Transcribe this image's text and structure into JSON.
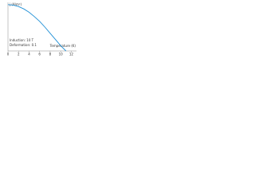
{
  "chart_data": {
    "type": "line",
    "y_label": "j (A/m²)",
    "x_label": "Temperature (K)",
    "annotations": [
      "Induction: 10 T",
      "Deformation: 0.1"
    ],
    "x": [
      0,
      1,
      2,
      3,
      4,
      5,
      6,
      7,
      8,
      9,
      10,
      11
    ],
    "series": [
      {
        "color": "#1f8fd6",
        "values": [
          0.97,
          0.96,
          0.93,
          0.88,
          0.81,
          0.72,
          0.62,
          0.5,
          0.37,
          0.24,
          0.11,
          0.0
        ]
      }
    ],
    "xlim": [
      0,
      13
    ],
    "ylim": [
      0,
      1
    ],
    "xticks": [
      0,
      2,
      4,
      6,
      8,
      10,
      12
    ]
  }
}
